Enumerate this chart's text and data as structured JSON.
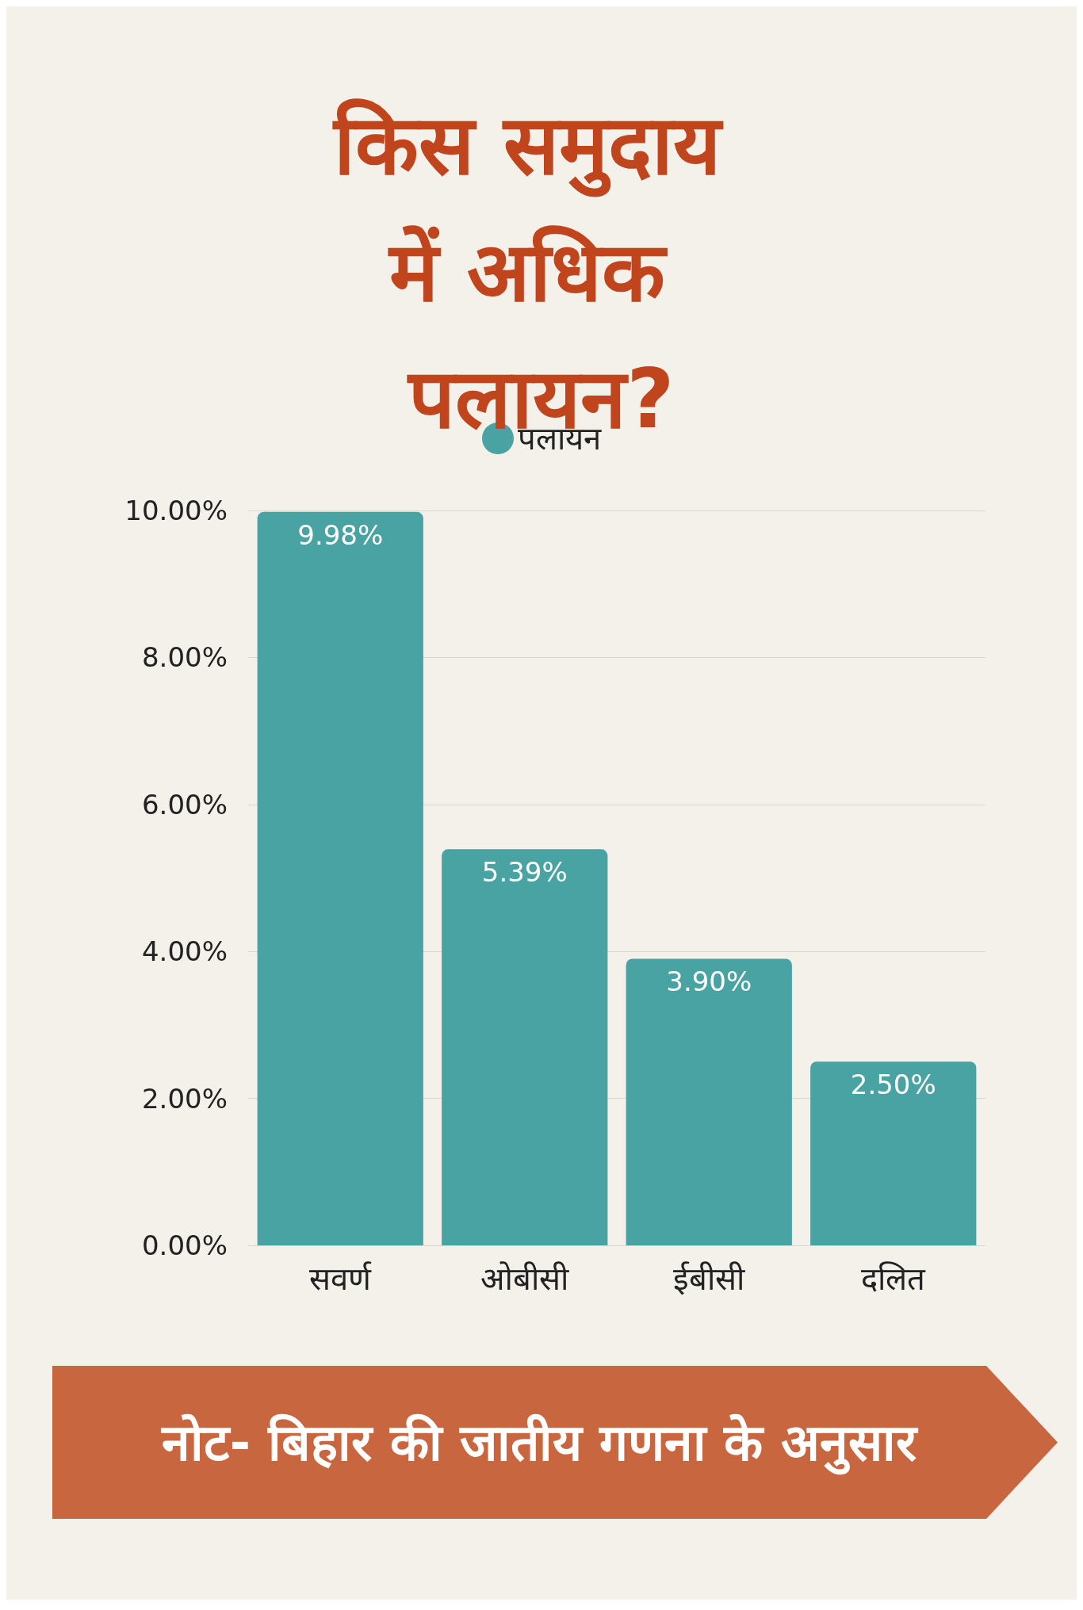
{
  "chart_data": {
    "type": "bar",
    "title": "किस समुदाय में अधिक पलायन?",
    "categories": [
      "सवर्ण",
      "ओबीसी",
      "ईबीसी",
      "दलित"
    ],
    "series": [
      {
        "name": "पलायन",
        "color": "#4aa3a3",
        "values": [
          9.98,
          5.39,
          3.9,
          2.5
        ],
        "value_labels": [
          "9.98%",
          "5.39%",
          "3.90%",
          "2.50%"
        ]
      }
    ],
    "ylim": [
      0,
      10
    ],
    "yticks": [
      {
        "value": 0,
        "label": "0.00%"
      },
      {
        "value": 2,
        "label": "2.00%"
      },
      {
        "value": 4,
        "label": "4.00%"
      },
      {
        "value": 6,
        "label": "6.00%"
      },
      {
        "value": 8,
        "label": "8.00%"
      },
      {
        "value": 10,
        "label": "10.00%"
      }
    ],
    "grid": "y",
    "legend": "top",
    "marker": "circle",
    "annotations": [
      "नोट- बिहार की जातीय गणना के अनुसार"
    ]
  }
}
